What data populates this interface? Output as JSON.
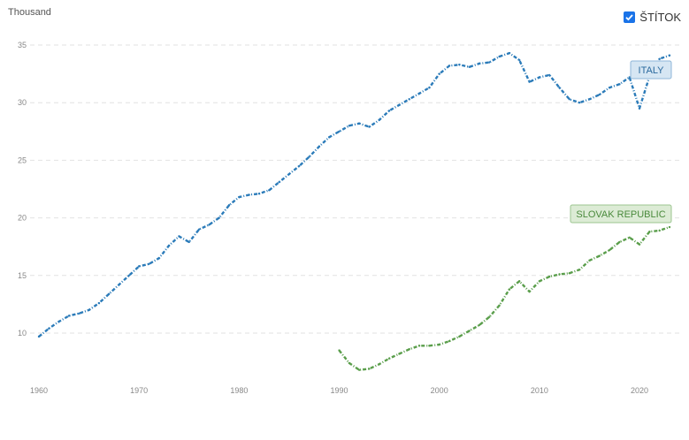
{
  "header": {
    "unit_label": "Thousand",
    "toggle_label": "ŠTÍTOK",
    "toggle_checked": true
  },
  "chart_data": {
    "type": "line",
    "title": "",
    "xlabel": "",
    "ylabel": "Thousand",
    "xlim": [
      1960,
      2023
    ],
    "ylim": [
      5,
      37
    ],
    "x_ticks": [
      1960,
      1970,
      1980,
      1990,
      2000,
      2010,
      2020
    ],
    "y_ticks": [
      10,
      15,
      20,
      25,
      30,
      35
    ],
    "grid": true,
    "series": [
      {
        "name": "ITALY",
        "color": "#2b7bb9",
        "label_bg": "#d6e6f3",
        "label_border": "#8fb6d8",
        "label_text": "#2b6a9e",
        "x": [
          1960,
          1961,
          1962,
          1963,
          1964,
          1965,
          1966,
          1967,
          1968,
          1969,
          1970,
          1971,
          1972,
          1973,
          1974,
          1975,
          1976,
          1977,
          1978,
          1979,
          1980,
          1981,
          1982,
          1983,
          1984,
          1985,
          1986,
          1987,
          1988,
          1989,
          1990,
          1991,
          1992,
          1993,
          1994,
          1995,
          1996,
          1997,
          1998,
          1999,
          2000,
          2001,
          2002,
          2003,
          2004,
          2005,
          2006,
          2007,
          2008,
          2009,
          2010,
          2011,
          2012,
          2013,
          2014,
          2015,
          2016,
          2017,
          2018,
          2019,
          2020,
          2021,
          2022,
          2023
        ],
        "values": [
          9.7,
          10.4,
          11.0,
          11.5,
          11.7,
          12.0,
          12.6,
          13.4,
          14.2,
          15.0,
          15.8,
          16.0,
          16.5,
          17.6,
          18.4,
          17.9,
          19.0,
          19.4,
          20.0,
          21.1,
          21.8,
          22.0,
          22.1,
          22.4,
          23.1,
          23.8,
          24.5,
          25.3,
          26.2,
          27.0,
          27.5,
          28.0,
          28.2,
          27.9,
          28.5,
          29.3,
          29.8,
          30.3,
          30.8,
          31.3,
          32.5,
          33.2,
          33.3,
          33.1,
          33.4,
          33.5,
          34.0,
          34.3,
          33.7,
          31.8,
          32.2,
          32.4,
          31.3,
          30.3,
          30.0,
          30.3,
          30.7,
          31.3,
          31.6,
          32.2,
          29.5,
          32.3,
          33.8,
          34.1
        ]
      },
      {
        "name": "SLOVAK REPUBLIC",
        "color": "#5a9e4b",
        "label_bg": "#dcebd5",
        "label_border": "#9cc690",
        "label_text": "#4a8a3c",
        "x": [
          1990,
          1991,
          1992,
          1993,
          1994,
          1995,
          1996,
          1997,
          1998,
          1999,
          2000,
          2001,
          2002,
          2003,
          2004,
          2005,
          2006,
          2007,
          2008,
          2009,
          2010,
          2011,
          2012,
          2013,
          2014,
          2015,
          2016,
          2017,
          2018,
          2019,
          2020,
          2021,
          2022,
          2023
        ],
        "values": [
          8.5,
          7.4,
          6.8,
          6.9,
          7.3,
          7.8,
          8.2,
          8.6,
          8.9,
          8.9,
          9.0,
          9.3,
          9.7,
          10.2,
          10.7,
          11.4,
          12.4,
          13.8,
          14.5,
          13.6,
          14.5,
          14.9,
          15.1,
          15.2,
          15.5,
          16.3,
          16.7,
          17.2,
          17.9,
          18.3,
          17.7,
          18.8,
          18.9,
          19.2
        ]
      }
    ]
  }
}
